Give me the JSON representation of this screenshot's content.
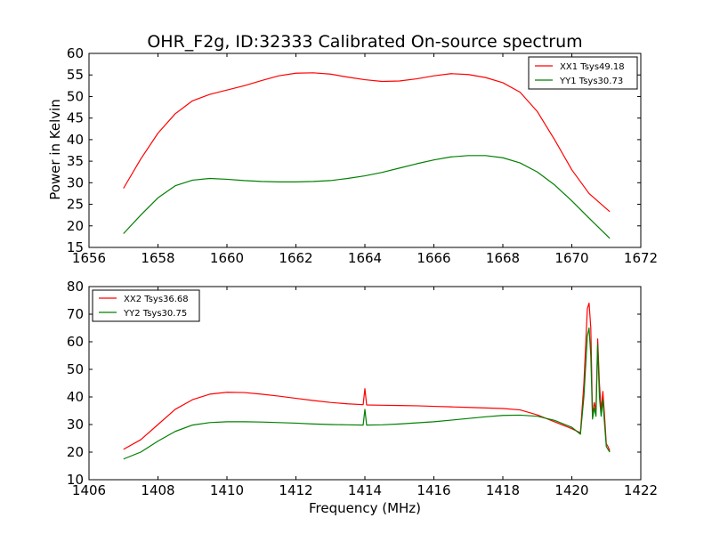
{
  "chart_data": [
    {
      "type": "line",
      "title": "OHR_F2g, ID:32333 Calibrated On-source spectrum",
      "xlabel": "",
      "ylabel": "Power in Kelvin",
      "xlim": [
        1656,
        1672
      ],
      "ylim": [
        15,
        60
      ],
      "xticks": [
        "1656",
        "1658",
        "1660",
        "1662",
        "1664",
        "1666",
        "1668",
        "1670",
        "1672"
      ],
      "yticks": [
        "15",
        "20",
        "25",
        "30",
        "35",
        "40",
        "45",
        "50",
        "55",
        "60"
      ],
      "legend_position": "top-right",
      "grid": false,
      "series": [
        {
          "name": "XX1 Tsys49.18",
          "color": "#ff0000",
          "x": [
            1657.0,
            1657.5,
            1658.0,
            1658.5,
            1659.0,
            1659.5,
            1660.0,
            1660.5,
            1661.0,
            1661.5,
            1662.0,
            1662.5,
            1663.0,
            1663.5,
            1664.0,
            1664.5,
            1665.0,
            1665.5,
            1666.0,
            1666.5,
            1667.0,
            1667.5,
            1668.0,
            1668.5,
            1669.0,
            1669.5,
            1670.0,
            1670.5,
            1671.1
          ],
          "values": [
            28.7,
            35.5,
            41.5,
            46.0,
            49.0,
            50.5,
            51.5,
            52.5,
            53.7,
            54.8,
            55.4,
            55.5,
            55.2,
            54.5,
            53.9,
            53.5,
            53.6,
            54.1,
            54.8,
            55.3,
            55.1,
            54.4,
            53.2,
            51.0,
            46.5,
            40.0,
            33.0,
            27.5,
            23.3
          ]
        },
        {
          "name": "YY1 Tsys30.73",
          "color": "#008000",
          "x": [
            1657.0,
            1657.5,
            1658.0,
            1658.5,
            1659.0,
            1659.5,
            1660.0,
            1660.5,
            1661.0,
            1661.5,
            1662.0,
            1662.5,
            1663.0,
            1663.5,
            1664.0,
            1664.5,
            1665.0,
            1665.5,
            1666.0,
            1666.5,
            1667.0,
            1667.5,
            1668.0,
            1668.5,
            1669.0,
            1669.5,
            1670.0,
            1670.5,
            1671.1
          ],
          "values": [
            18.2,
            22.5,
            26.5,
            29.3,
            30.6,
            31.0,
            30.8,
            30.5,
            30.3,
            30.2,
            30.2,
            30.3,
            30.5,
            31.0,
            31.6,
            32.4,
            33.4,
            34.4,
            35.3,
            36.0,
            36.3,
            36.3,
            35.8,
            34.6,
            32.5,
            29.5,
            25.8,
            21.8,
            17.1
          ]
        }
      ]
    },
    {
      "type": "line",
      "title": "",
      "xlabel": "Frequency (MHz)",
      "ylabel": "",
      "xlim": [
        1406,
        1422
      ],
      "ylim": [
        10,
        80
      ],
      "xticks": [
        "1406",
        "1408",
        "1410",
        "1412",
        "1414",
        "1416",
        "1418",
        "1420",
        "1422"
      ],
      "yticks": [
        "10",
        "20",
        "30",
        "40",
        "50",
        "60",
        "70",
        "80"
      ],
      "legend_position": "top-left",
      "grid": false,
      "series": [
        {
          "name": "XX2 Tsys36.68",
          "color": "#ff0000",
          "x": [
            1407.0,
            1407.5,
            1408.0,
            1408.5,
            1409.0,
            1409.5,
            1410.0,
            1410.5,
            1411.0,
            1411.5,
            1412.0,
            1412.5,
            1413.0,
            1413.5,
            1413.95,
            1414.0,
            1414.05,
            1414.5,
            1415.0,
            1415.5,
            1416.0,
            1416.5,
            1417.0,
            1417.5,
            1418.0,
            1418.5,
            1419.0,
            1419.5,
            1420.0,
            1420.25,
            1420.35,
            1420.45,
            1420.5,
            1420.55,
            1420.6,
            1420.65,
            1420.7,
            1420.75,
            1420.8,
            1420.85,
            1420.9,
            1420.95,
            1421.0,
            1421.05,
            1421.1
          ],
          "values": [
            21.0,
            24.5,
            30.0,
            35.5,
            39.0,
            41.0,
            41.7,
            41.6,
            41.0,
            40.3,
            39.5,
            38.7,
            38.0,
            37.5,
            37.2,
            43.0,
            37.1,
            37.0,
            36.9,
            36.8,
            36.6,
            36.4,
            36.2,
            36.0,
            35.8,
            35.3,
            33.5,
            31.0,
            28.5,
            27.0,
            45.0,
            72.0,
            74.0,
            65.0,
            33.0,
            38.0,
            35.0,
            61.0,
            45.0,
            35.0,
            42.0,
            33.0,
            23.0,
            22.0,
            20.5
          ]
        },
        {
          "name": "YY2 Tsys30.75",
          "color": "#008000",
          "x": [
            1407.0,
            1407.5,
            1408.0,
            1408.5,
            1409.0,
            1409.5,
            1410.0,
            1410.5,
            1411.0,
            1411.5,
            1412.0,
            1412.5,
            1413.0,
            1413.5,
            1413.95,
            1414.0,
            1414.05,
            1414.5,
            1415.0,
            1415.5,
            1416.0,
            1416.5,
            1417.0,
            1417.5,
            1418.0,
            1418.5,
            1419.0,
            1419.5,
            1420.0,
            1420.25,
            1420.35,
            1420.45,
            1420.5,
            1420.55,
            1420.6,
            1420.65,
            1420.7,
            1420.75,
            1420.8,
            1420.85,
            1420.9,
            1420.95,
            1421.0,
            1421.05,
            1421.1
          ],
          "values": [
            17.5,
            20.0,
            24.0,
            27.5,
            29.8,
            30.7,
            31.0,
            31.0,
            30.9,
            30.7,
            30.5,
            30.2,
            30.0,
            29.9,
            29.8,
            35.5,
            29.8,
            29.9,
            30.2,
            30.6,
            31.0,
            31.6,
            32.2,
            32.8,
            33.3,
            33.4,
            33.0,
            31.5,
            29.0,
            26.5,
            40.0,
            62.0,
            65.0,
            55.0,
            32.0,
            36.0,
            33.0,
            59.0,
            40.0,
            33.0,
            39.0,
            30.0,
            22.0,
            21.0,
            20.0
          ]
        }
      ]
    }
  ]
}
